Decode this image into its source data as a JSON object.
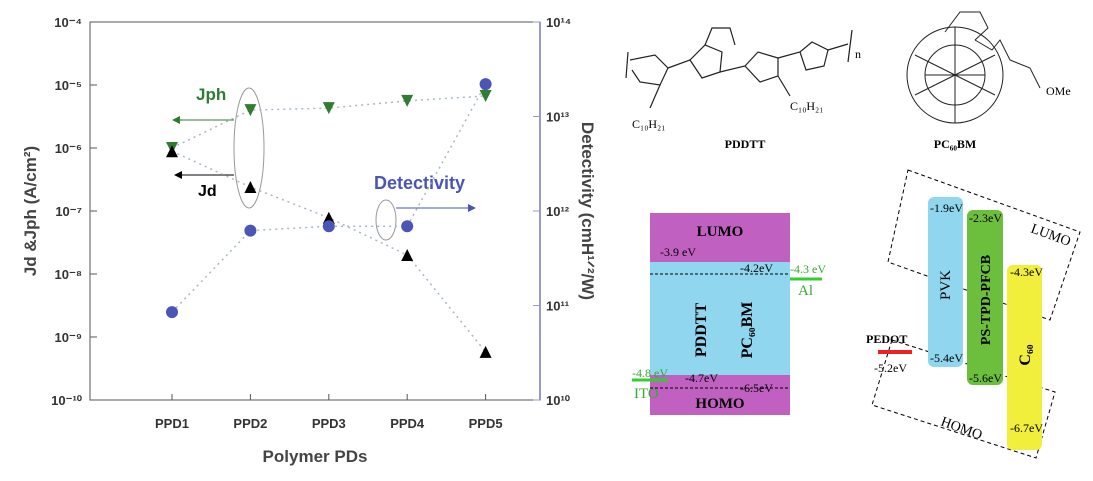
{
  "chart_data": {
    "type": "scatter",
    "categories": [
      "PPD1",
      "PPD2",
      "PPD3",
      "PPD4",
      "PPD5"
    ],
    "x_label": "Polymer PDs",
    "y_label": "Jd &Jph (A/cm²)",
    "y2_label": "Detectivity (cmH¹ᐟ²/W)",
    "log_scale": true,
    "ylim": [
      1e-10,
      0.0001
    ],
    "yticks": [
      {
        "value": 1e-10,
        "label": "10⁻¹⁰"
      },
      {
        "value": 1e-09,
        "label": "10⁻⁹"
      },
      {
        "value": 1e-08,
        "label": "10⁻⁸"
      },
      {
        "value": 1e-07,
        "label": "10⁻⁷"
      },
      {
        "value": 1e-06,
        "label": "10⁻⁶"
      },
      {
        "value": 1e-05,
        "label": "10⁻⁵"
      },
      {
        "value": 0.0001,
        "label": "10⁻⁴"
      }
    ],
    "y2lim": [
      10000000000.0,
      100000000000000.0
    ],
    "y2ticks": [
      {
        "value": 10000000000.0,
        "label": "10¹⁰"
      },
      {
        "value": 100000000000.0,
        "label": "10¹¹"
      },
      {
        "value": 1000000000000.0,
        "label": "10¹²"
      },
      {
        "value": 10000000000000.0,
        "label": "10¹³"
      },
      {
        "value": 100000000000000.0,
        "label": "10¹⁴"
      }
    ],
    "series": [
      {
        "name": "Jph",
        "color": "#2e7d32",
        "marker": "triangle-down",
        "values": [
          1e-06,
          4e-06,
          4.3e-06,
          5.6e-06,
          6.7e-06
        ]
      },
      {
        "name": "Jd",
        "color": "#000000",
        "marker": "triangle-up",
        "values": [
          8.9e-07,
          2.4e-07,
          7.8e-08,
          2e-08,
          5.8e-10
        ]
      },
      {
        "name": "Detectivity",
        "color": "#4a55b5",
        "marker": "circle",
        "axis": "y2",
        "values": [
          85000000000.0,
          620000000000.0,
          690000000000.0,
          690000000000.0,
          22000000000000.0
        ]
      }
    ],
    "annotations": [
      "Jph",
      "Jd",
      "Detectivity"
    ]
  },
  "structures": {
    "left_name": "PDDTT",
    "right_name": "PC₆₀BM",
    "side_chain_1": "C₁₀H₂₁",
    "side_chain_2": "C₁₀H₂₁",
    "repeat": "n",
    "ester": "OMe"
  },
  "energy_diagrams": {
    "left": {
      "lumo": "LUMO",
      "homo": "HOMO",
      "lumo_pddtt": "-3.9 eV",
      "lumo_pcbm": "-4.2eV",
      "al_level": "-4.3 eV",
      "al": "Al",
      "pddtt": "PDDTT",
      "pcbm": "PC₆₀BM",
      "ito_level": "-4.8 eV",
      "ito": "ITO",
      "homo_pddtt": "-4.7eV",
      "homo_pcbm": "-6.5eV"
    },
    "right": {
      "lumo": "LUMO",
      "homo": "HOMO",
      "pvk_lumo": "-1.9eV",
      "ps_lumo": "-2.3eV",
      "c60_lumo": "-4.3eV",
      "pvk": "PVK",
      "ps": "PS-TPD-PFCB",
      "c60": "C₆₀",
      "pedot": "PEDOT",
      "pedot_level": "-5.2eV",
      "pvk_homo": "-5.4eV",
      "ps_homo": "-5.6eV",
      "c60_homo": "-6.7eV"
    }
  }
}
